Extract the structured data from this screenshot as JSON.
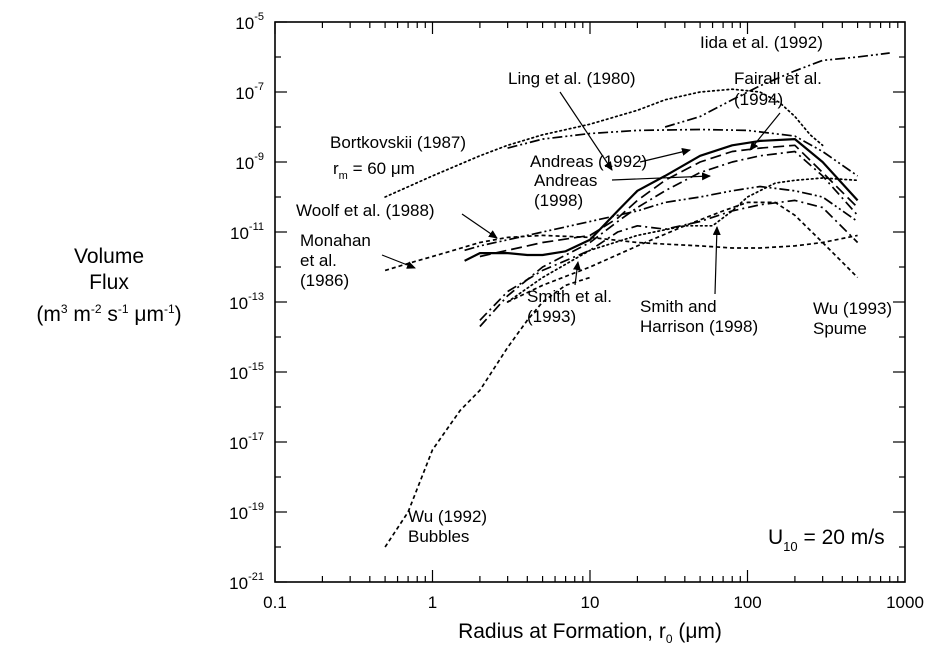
{
  "chart_data": {
    "type": "line",
    "title": "",
    "xlabel": {
      "text": "Radius at Formation, r",
      "sub": "0",
      "units": "(μm)"
    },
    "ylabel": {
      "line1": "Volume",
      "line2": "Flux",
      "line3": [
        "(m",
        "3",
        " m",
        "-2",
        " s",
        "-1",
        " μm",
        "-1",
        ")"
      ]
    },
    "x_scale": "log",
    "y_scale": "log",
    "xlim": [
      0.1,
      1000
    ],
    "ylim": [
      1e-21,
      1e-05
    ],
    "x_ticks": [
      0.1,
      1,
      10,
      100,
      1000
    ],
    "x_tick_labels": [
      "0.1",
      "1",
      "10",
      "100",
      "1000"
    ],
    "y_ticks": [
      -21,
      -19,
      -17,
      -15,
      -13,
      -11,
      -9,
      -7,
      -5
    ],
    "y_tick_labels": [
      {
        "base": "10",
        "exp": "-21"
      },
      {
        "base": "10",
        "exp": "-19"
      },
      {
        "base": "10",
        "exp": "-17"
      },
      {
        "base": "10",
        "exp": "-15"
      },
      {
        "base": "10",
        "exp": "-13"
      },
      {
        "base": "10",
        "exp": "-11"
      },
      {
        "base": "10",
        "exp": "-9"
      },
      {
        "base": "10",
        "exp": "-7"
      },
      {
        "base": "10",
        "exp": "-5"
      }
    ],
    "grid": false,
    "condition_label": {
      "main": "U",
      "sub": "10",
      "rest": " = 20 m/s"
    },
    "series": [
      {
        "name": "Ling et al. (1980)",
        "style": "dotted",
        "x": [
          0.5,
          1,
          2,
          3,
          5,
          10,
          20,
          30,
          50,
          80,
          120,
          160,
          200,
          250,
          300
        ],
        "y": [
          1e-10,
          4e-10,
          1.5e-09,
          3e-09,
          6e-09,
          1.2e-08,
          3e-08,
          6e-08,
          1e-07,
          1.2e-07,
          1e-07,
          5e-08,
          2e-08,
          6e-09,
          3e-09
        ]
      },
      {
        "name": "Iida et al. (1992)",
        "style": "dash-dot-dot",
        "x": [
          30,
          50,
          80,
          120,
          200,
          300,
          500,
          800
        ],
        "y": [
          1e-08,
          2e-08,
          6e-08,
          1.5e-07,
          4e-07,
          8e-07,
          1e-06,
          1.3e-06
        ]
      },
      {
        "name": "Bortkovskii (1987)",
        "style": "dash-dot-dot",
        "x": [
          3,
          5,
          10,
          20,
          50,
          100,
          200,
          300,
          500
        ],
        "y": [
          2.5e-09,
          4.5e-09,
          6.5e-09,
          8e-09,
          8.5e-09,
          8e-09,
          5.5e-09,
          2e-09,
          4e-10
        ]
      },
      {
        "name": "Andreas (1992)",
        "style": "solid",
        "x": [
          1.6,
          2,
          3,
          4,
          5,
          7,
          10,
          15,
          20,
          30,
          50,
          80,
          120,
          200,
          300,
          500
        ],
        "y": [
          1.5e-12,
          2.5e-12,
          2.5e-12,
          2.2e-12,
          2.2e-12,
          2.8e-12,
          6e-12,
          4e-11,
          1.5e-10,
          4e-10,
          1.5e-09,
          3e-09,
          4e-09,
          4.5e-09,
          1e-09,
          8e-11
        ]
      },
      {
        "name": "Fairall et al. (1994)",
        "style": "long-dash",
        "x": [
          2,
          3,
          5,
          10,
          15,
          20,
          30,
          50,
          80,
          120,
          200,
          300,
          500
        ],
        "y": [
          2e-12,
          3e-12,
          5e-12,
          8e-12,
          2.5e-11,
          8e-11,
          3e-10,
          1e-09,
          2e-09,
          2.5e-09,
          3e-09,
          5e-10,
          5e-11
        ]
      },
      {
        "name": "Andreas (1998)",
        "style": "dash-dot",
        "x": [
          2,
          3,
          5,
          10,
          15,
          20,
          30,
          50,
          80,
          120,
          200,
          300,
          500
        ],
        "y": [
          2e-14,
          1.5e-13,
          1e-12,
          5e-12,
          2e-11,
          5e-11,
          1.5e-10,
          5e-10,
          1e-09,
          1.5e-09,
          2e-09,
          4e-10,
          3e-11
        ]
      },
      {
        "name": "Woolf et al. (1988)",
        "style": "dash-dot-dot",
        "x": [
          1.6,
          2,
          3,
          5,
          10,
          20,
          30,
          50,
          80,
          120,
          200,
          300,
          500
        ],
        "y": [
          3e-12,
          4e-12,
          6e-12,
          1e-11,
          2e-11,
          4e-11,
          7e-11,
          1e-10,
          1.5e-10,
          2e-10,
          1.5e-10,
          1e-10,
          2e-11
        ]
      },
      {
        "name": "Monahan et al. (1986)",
        "style": "short-dash",
        "x": [
          0.5,
          0.8,
          1,
          2,
          3,
          5,
          10,
          20,
          30,
          50,
          80,
          120,
          200,
          300,
          500
        ],
        "y": [
          8e-13,
          1.5e-12,
          2e-12,
          5e-12,
          7e-12,
          8e-12,
          7e-12,
          5e-12,
          4.5e-12,
          4e-12,
          3.5e-12,
          3.5e-12,
          4e-12,
          5e-12,
          8e-12
        ]
      },
      {
        "name": "Smith et al. (1993)",
        "style": "dash-dot",
        "x": [
          2,
          3,
          5,
          10,
          15,
          20,
          30,
          50,
          80,
          120,
          200,
          300,
          500
        ],
        "y": [
          3e-14,
          2e-13,
          8e-13,
          3e-12,
          1e-11,
          1.5e-11,
          1.2e-11,
          2e-11,
          4e-11,
          6e-11,
          8e-11,
          5e-11,
          5e-12
        ]
      },
      {
        "name": "Smith and Harrison (1998)",
        "style": "dotted",
        "x": [
          3,
          5,
          10,
          20,
          40,
          60,
          80,
          100,
          150,
          200,
          300,
          500
        ],
        "y": [
          1e-13,
          5e-13,
          3e-12,
          8e-12,
          1.5e-11,
          1.5e-11,
          4e-11,
          1e-10,
          2.5e-10,
          3e-10,
          3.5e-10,
          3e-10
        ]
      },
      {
        "name": "Wu (1993) Spume",
        "style": "short-dash",
        "x": [
          3,
          5,
          10,
          20,
          40,
          70,
          100,
          150,
          200,
          300,
          500
        ],
        "y": [
          1e-13,
          3e-13,
          1e-12,
          4e-12,
          1.5e-11,
          4e-11,
          7e-11,
          7e-11,
          3e-11,
          5e-12,
          5e-13
        ]
      },
      {
        "name": "Wu (1992) Bubbles",
        "style": "short-dash",
        "x": [
          0.5,
          0.7,
          1,
          1.5,
          2,
          3,
          4,
          5,
          7,
          10
        ],
        "y": [
          1e-20,
          1e-19,
          6e-18,
          8e-17,
          3e-16,
          5e-15,
          3e-14,
          1e-13,
          3e-13,
          5e-13
        ]
      }
    ],
    "annotations": [
      {
        "id": "ling",
        "lines": [
          "Ling et al. (1980)"
        ]
      },
      {
        "id": "iida",
        "lines": [
          "Iida et al. (1992)"
        ]
      },
      {
        "id": "fairall",
        "lines": [
          "Fairall et al.",
          "(1994)"
        ]
      },
      {
        "id": "bortkovskii",
        "lines": [
          "Bortkovskii (1987)"
        ]
      },
      {
        "id": "andreas92",
        "lines": [
          "Andreas (1992)"
        ]
      },
      {
        "id": "andreas98",
        "lines": [
          "Andreas",
          "(1998)"
        ]
      },
      {
        "id": "woolf",
        "lines": [
          "Woolf et al. (1988)"
        ]
      },
      {
        "id": "monahan",
        "lines": [
          "Monahan",
          "et al.",
          "(1986)"
        ]
      },
      {
        "id": "smith93",
        "lines": [
          "Smith et al.",
          "(1993)"
        ]
      },
      {
        "id": "smithharrison",
        "lines": [
          "Smith and",
          "Harrison (1998)"
        ]
      },
      {
        "id": "wu93",
        "lines": [
          "Wu (1993)",
          "Spume"
        ]
      },
      {
        "id": "wu92",
        "lines": [
          "Wu (1992)",
          "Bubbles"
        ]
      }
    ],
    "rm_label": {
      "r": "r",
      "sub": "m",
      "rest": " = 60 μm"
    }
  }
}
